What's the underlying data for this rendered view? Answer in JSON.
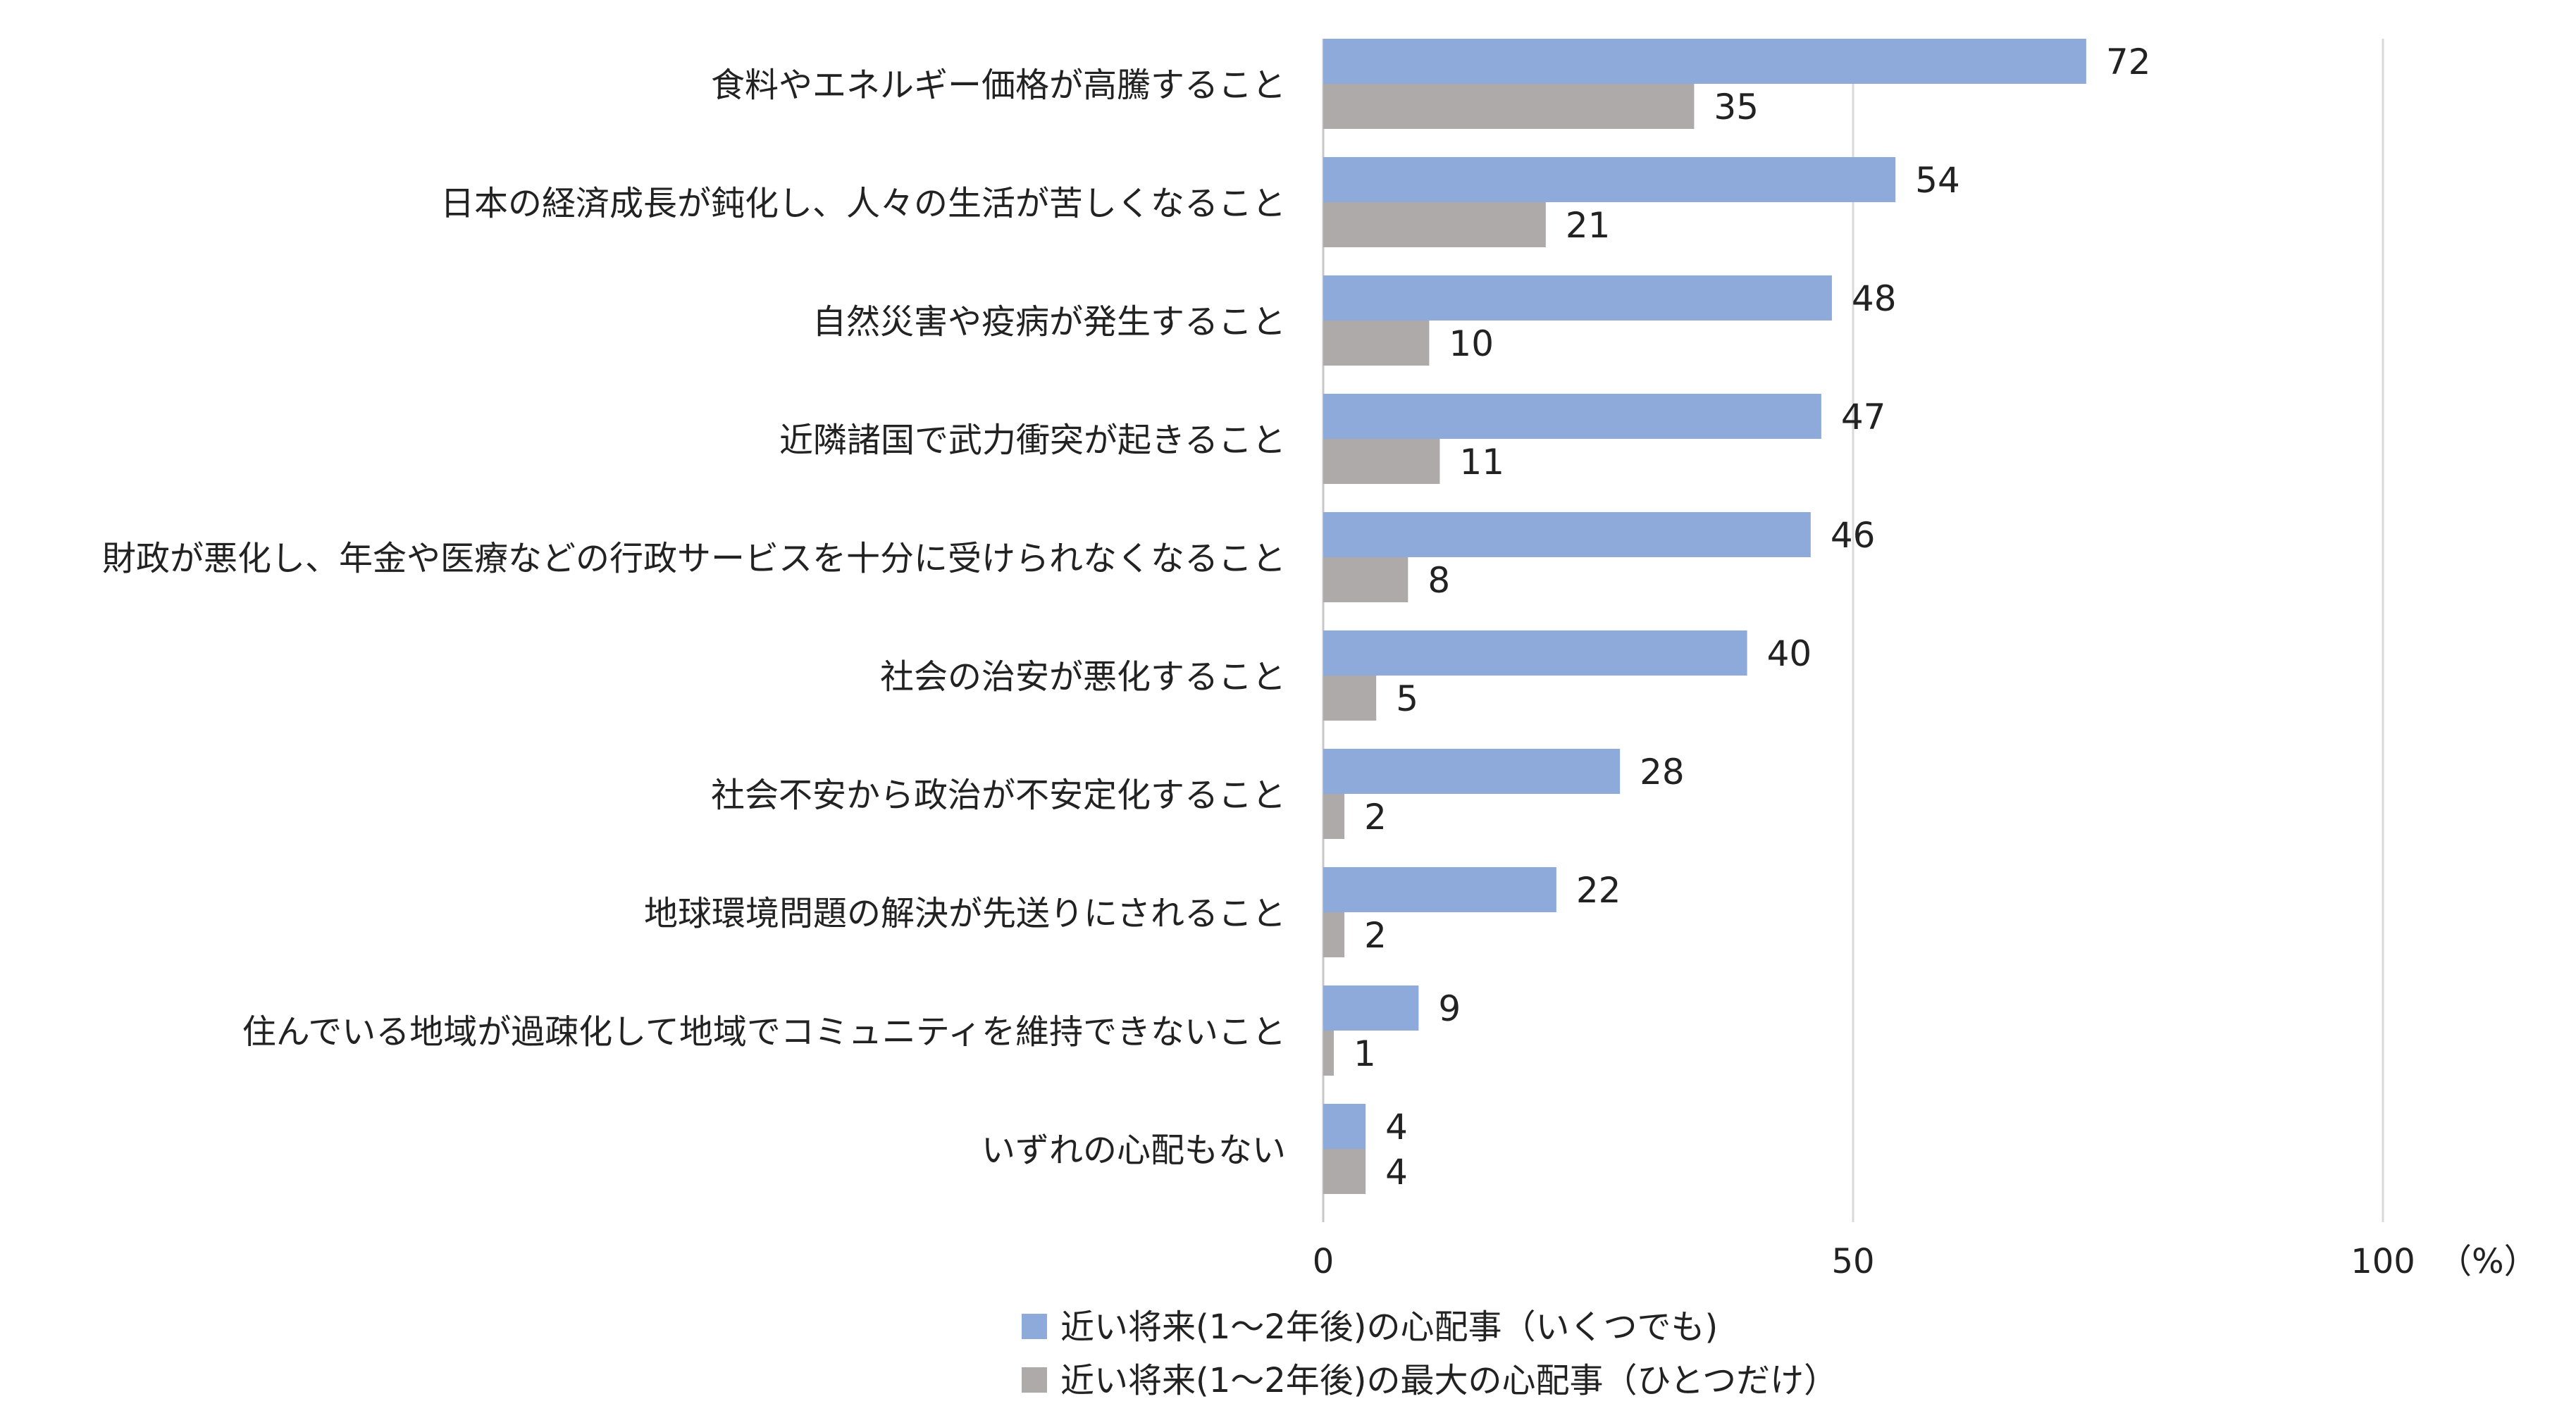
{
  "chart_data": {
    "type": "bar",
    "orientation": "horizontal",
    "categories": [
      "食料やエネルギー価格が高騰すること",
      "日本の経済成長が鈍化し、人々の生活が苦しくなること",
      "自然災害や疫病が発生すること",
      "近隣諸国で武力衝突が起きること",
      "財政が悪化し、年金や医療などの行政サービスを十分に受けられなくなること",
      "社会の治安が悪化すること",
      "社会不安から政治が不安定化すること",
      "地球環境問題の解決が先送りにされること",
      "住んでいる地域が過疎化して地域でコミュニティを維持できないこと",
      "いずれの心配もない"
    ],
    "series": [
      {
        "name": "近い将来(1～2年後)の心配事（いくつでも)",
        "color": "#8eaadb",
        "values": [
          72,
          54,
          48,
          47,
          46,
          40,
          28,
          22,
          9,
          4
        ]
      },
      {
        "name": "近い将来(1～2年後)の最大の心配事（ひとつだけ）",
        "color": "#aeaaaa",
        "values": [
          35,
          21,
          10,
          11,
          8,
          5,
          2,
          2,
          1,
          4
        ]
      }
    ],
    "xlim": [
      0,
      100
    ],
    "xticks": [
      "0",
      "50",
      "100"
    ],
    "unit_label": "（%）",
    "grid": true,
    "legend_position": "bottom"
  }
}
